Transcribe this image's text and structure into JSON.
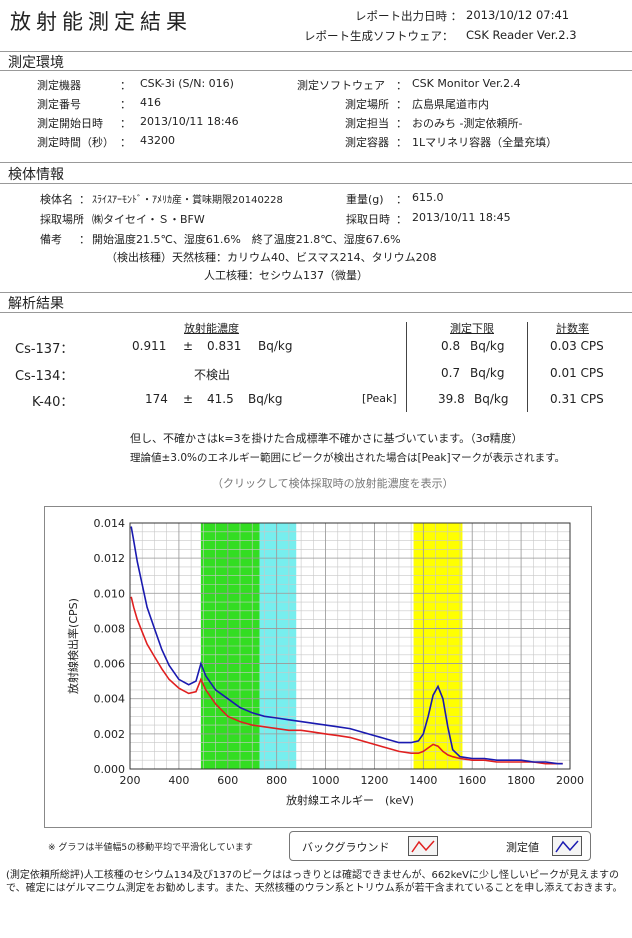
{
  "header": {
    "title": "放射能測定結果",
    "report_time_label": "レポート出力日時 ：",
    "report_time_value": "2013/10/12 07:41",
    "software_label": "レポート生成ソフトウェア：",
    "software_value": "CSK Reader Ver.2.3"
  },
  "env": {
    "section": "測定環境",
    "device_label": "測定機器",
    "device_value": "CSK-3i (S/N: 016)",
    "number_label": "測定番号",
    "number_value": "416",
    "start_label": "測定開始日時",
    "start_value": "2013/10/11 18:46",
    "time_label": "測定時間（秒）",
    "time_value": "43200",
    "sw_label": "測定ソフトウェア",
    "sw_value": "CSK Monitor Ver.2.4",
    "place_label": "測定場所",
    "place_value": "広島県尾道市内",
    "person_label": "測定担当",
    "person_value": "おのみち -測定依頼所-",
    "vessel_label": "測定容器",
    "vessel_value": "1Lマリネリ容器（全量充填）"
  },
  "sample": {
    "section": "検体情報",
    "name_label": "検体名",
    "name_value": "ｽﾗｲｽｱｰﾓﾝﾄﾞ・ｱﾒﾘｶ産・賞味期限20140228",
    "weight_label": "重量(g)",
    "weight_value": "615.0",
    "place_label": "採取場所",
    "place_value": "㈱タイセイ・Ｓ・BFW",
    "date_label": "採取日時",
    "date_value": "2013/10/11 18:45",
    "note_label": "備考",
    "note1": "開始温度21.5℃、湿度61.6%　終了温度21.8℃、湿度67.6%",
    "note2": "（検出核種）天然核種：カリウム40、ビスマス214、タリウム208",
    "note3": "人工核種：セシウム137（微量）"
  },
  "analysis": {
    "section": "解析結果",
    "col_conc": "放射能濃度",
    "col_limit": "測定下限",
    "col_rate": "計数率",
    "rows": [
      {
        "nuclide": "Cs-137：",
        "value": "0.911",
        "pm": "±",
        "err": "0.831",
        "unit": "Bq/kg",
        "peak": "",
        "limit": "0.8",
        "limit_unit": "Bq/kg",
        "rate": "0.03 CPS"
      },
      {
        "nuclide": "Cs-134：",
        "value": "不検出",
        "pm": "",
        "err": "",
        "unit": "",
        "peak": "",
        "limit": "0.7",
        "limit_unit": "Bq/kg",
        "rate": "0.01 CPS"
      },
      {
        "nuclide": "K-40：",
        "value": "174",
        "pm": "±",
        "err": "41.5",
        "unit": "Bq/kg",
        "peak": "[Peak]",
        "limit": "39.8",
        "limit_unit": "Bq/kg",
        "rate": "0.31 CPS"
      }
    ],
    "note1": "但し、不確かさはk=3を掛けた合成標準不確かさに基づいています。（3σ精度）",
    "note2": "理論値±3.0%のエネルギー範囲にピークが検出された場合は[Peak]マークが表示されます。",
    "click_note": "（クリックして検体採取時の放射能濃度を表示）"
  },
  "chart_data": {
    "type": "line",
    "xlabel": "放射線エネルギー　(keV)",
    "ylabel": "放射線検出率(CPS)",
    "xlim": [
      200,
      2000
    ],
    "ylim": [
      0,
      0.014
    ],
    "xticks": [
      "200",
      "400",
      "600",
      "800",
      "1000",
      "1200",
      "1400",
      "1600",
      "1800",
      "2000"
    ],
    "yticks": [
      "0.000",
      "0.002",
      "0.004",
      "0.006",
      "0.008",
      "0.010",
      "0.012",
      "0.014"
    ],
    "bands": [
      {
        "from": 490,
        "to": 730,
        "color": "#33dd22"
      },
      {
        "from": 730,
        "to": 880,
        "color": "#77eeee"
      },
      {
        "from": 1360,
        "to": 1560,
        "color": "#ffff00"
      }
    ],
    "series": [
      {
        "name": "測定値",
        "color": "#1a1ab0",
        "x": [
          205,
          215,
          230,
          250,
          270,
          300,
          330,
          360,
          400,
          440,
          470,
          490,
          510,
          550,
          600,
          650,
          700,
          750,
          800,
          850,
          900,
          950,
          1000,
          1050,
          1100,
          1150,
          1200,
          1250,
          1300,
          1350,
          1380,
          1400,
          1420,
          1440,
          1460,
          1480,
          1500,
          1520,
          1550,
          1600,
          1650,
          1700,
          1750,
          1800,
          1850,
          1900,
          1950,
          1970
        ],
        "y": [
          0.0138,
          0.013,
          0.0118,
          0.0105,
          0.0092,
          0.008,
          0.0068,
          0.0059,
          0.0051,
          0.0048,
          0.005,
          0.006,
          0.0053,
          0.0045,
          0.004,
          0.0035,
          0.0032,
          0.003,
          0.0029,
          0.0028,
          0.0027,
          0.0026,
          0.0025,
          0.0024,
          0.0023,
          0.0021,
          0.0019,
          0.0017,
          0.0015,
          0.0015,
          0.0016,
          0.002,
          0.003,
          0.0042,
          0.0047,
          0.004,
          0.0024,
          0.0011,
          0.0007,
          0.0006,
          0.0006,
          0.0005,
          0.0005,
          0.0005,
          0.0004,
          0.0004,
          0.0003,
          0.0003
        ]
      },
      {
        "name": "バックグラウンド",
        "color": "#e02020",
        "x": [
          205,
          215,
          230,
          250,
          270,
          300,
          330,
          360,
          400,
          440,
          470,
          490,
          510,
          550,
          600,
          650,
          700,
          750,
          800,
          850,
          900,
          950,
          1000,
          1050,
          1100,
          1150,
          1200,
          1250,
          1300,
          1350,
          1380,
          1400,
          1420,
          1440,
          1460,
          1480,
          1500,
          1520,
          1550,
          1600,
          1650,
          1700,
          1750,
          1800,
          1850,
          1900,
          1950,
          1970
        ],
        "y": [
          0.0098,
          0.0092,
          0.0085,
          0.0078,
          0.0071,
          0.0064,
          0.0057,
          0.0051,
          0.0046,
          0.0043,
          0.0044,
          0.0051,
          0.0045,
          0.0037,
          0.003,
          0.0027,
          0.0025,
          0.0024,
          0.0023,
          0.0022,
          0.0022,
          0.0021,
          0.002,
          0.0019,
          0.0018,
          0.0016,
          0.0014,
          0.0012,
          0.001,
          0.0009,
          0.0009,
          0.001,
          0.0012,
          0.0014,
          0.0013,
          0.001,
          0.0008,
          0.0007,
          0.0006,
          0.0005,
          0.0005,
          0.0004,
          0.0004,
          0.0004,
          0.0004,
          0.0003,
          0.0003,
          0.0003
        ]
      }
    ]
  },
  "chart_footer": {
    "smooth_note": "※ グラフは半値幅5の移動平均で平滑化しています",
    "legend_bg": "バックグラウンド",
    "legend_meas": "測定値"
  },
  "comment": {
    "line1": "(測定依頼所総評)人工核種のセシウム134及び137のピークははっきりとは確認できませんが、662keVに少し怪しいピークが見えますので、確定にはゲルマニウム測定をお勧めします。また、天然核種のウラン系とトリウム系が若干含まれていることを申し添えておきます。"
  }
}
